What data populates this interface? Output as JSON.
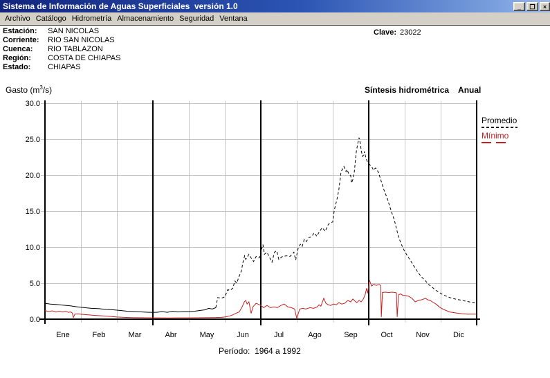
{
  "window": {
    "title": "Sistema de Información de Aguas Superficiales  versión 1.0",
    "controls": {
      "minimize": "_",
      "restore": "❐",
      "close": "×"
    }
  },
  "menu": {
    "items": [
      "Archivo",
      "Catálogo",
      "Hidrometría",
      "Almacenamiento",
      "Seguridad",
      "Ventana"
    ]
  },
  "station": {
    "rows": [
      {
        "label": "Estación:",
        "value": "SAN NICOLAS"
      },
      {
        "label": "Corriente:",
        "value": "RIO SAN NICOLAS"
      },
      {
        "label": "Cuenca:",
        "value": "RIO TABLAZON"
      },
      {
        "label": "Región:",
        "value": "COSTA DE CHIAPAS"
      },
      {
        "label": "Estado:",
        "value": "CHIAPAS"
      }
    ],
    "clave_label": "Clave:",
    "clave_value": "23022"
  },
  "chart_header": {
    "unit_prefix": "Gasto (m",
    "unit_sup": "3",
    "unit_suffix": "/s)",
    "title": "Síntesis hidrométrica",
    "mode": "Anual"
  },
  "legend": {
    "promedio": "Promedio",
    "minimo": "Mínimo",
    "promedio_color": "#000000",
    "minimo_color": "#c42020"
  },
  "footer": {
    "period": "Período:  1964 a 1992"
  },
  "chart_data": {
    "type": "line",
    "title": "Síntesis hidrométrica Anual",
    "ylabel": "Gasto (m3/s)",
    "ylim": [
      0,
      30
    ],
    "ytick_labels": [
      "30.0",
      "25.0",
      "20.0",
      "15.0",
      "10.0",
      "5.0",
      "0.0"
    ],
    "months": [
      "Ene",
      "Feb",
      "Mar",
      "Abr",
      "May",
      "Jun",
      "Jul",
      "Ago",
      "Sep",
      "Oct",
      "Nov",
      "Dic"
    ],
    "x_unit": "months 0-12 (fraction within year)",
    "quarter_lines_after": [
      "Mar",
      "Jun",
      "Sep"
    ],
    "grid": true,
    "legend_position": "right",
    "period": "1964 a 1992",
    "series": [
      {
        "name": "Promedio",
        "color": "#000000",
        "style": "dashed",
        "dash_from_x": 4.75,
        "points": [
          [
            0,
            2.2
          ],
          [
            0.15,
            2.1
          ],
          [
            0.3,
            2.05
          ],
          [
            0.5,
            1.95
          ],
          [
            0.7,
            1.85
          ],
          [
            0.9,
            1.7
          ],
          [
            1.1,
            1.6
          ],
          [
            1.3,
            1.5
          ],
          [
            1.5,
            1.45
          ],
          [
            1.7,
            1.35
          ],
          [
            1.9,
            1.3
          ],
          [
            2.1,
            1.2
          ],
          [
            2.3,
            1.1
          ],
          [
            2.5,
            1.05
          ],
          [
            2.7,
            1.0
          ],
          [
            2.9,
            0.95
          ],
          [
            3.1,
            0.95
          ],
          [
            3.25,
            1.05
          ],
          [
            3.4,
            0.95
          ],
          [
            3.55,
            1.1
          ],
          [
            3.7,
            1.0
          ],
          [
            3.85,
            1.05
          ],
          [
            4.0,
            1.05
          ],
          [
            4.15,
            1.1
          ],
          [
            4.3,
            1.2
          ],
          [
            4.45,
            1.3
          ],
          [
            4.55,
            1.5
          ],
          [
            4.65,
            1.4
          ],
          [
            4.75,
            1.6
          ],
          [
            4.8,
            3.0
          ],
          [
            4.9,
            2.9
          ],
          [
            5.0,
            3.1
          ],
          [
            5.08,
            4.1
          ],
          [
            5.15,
            4.0
          ],
          [
            5.22,
            4.3
          ],
          [
            5.28,
            5.3
          ],
          [
            5.33,
            5.0
          ],
          [
            5.4,
            6.0
          ],
          [
            5.46,
            6.7
          ],
          [
            5.5,
            7.8
          ],
          [
            5.55,
            8.8
          ],
          [
            5.58,
            8.3
          ],
          [
            5.67,
            9.0
          ],
          [
            5.73,
            8.5
          ],
          [
            5.8,
            8.0
          ],
          [
            5.87,
            8.7
          ],
          [
            5.96,
            8.5
          ],
          [
            6.02,
            9.7
          ],
          [
            6.06,
            10.35
          ],
          [
            6.1,
            9.0
          ],
          [
            6.17,
            9.3
          ],
          [
            6.25,
            8.5
          ],
          [
            6.31,
            7.9
          ],
          [
            6.38,
            9.3
          ],
          [
            6.44,
            9.5
          ],
          [
            6.5,
            8.3
          ],
          [
            6.6,
            8.7
          ],
          [
            6.72,
            8.8
          ],
          [
            6.81,
            8.7
          ],
          [
            6.92,
            9.3
          ],
          [
            6.97,
            8.2
          ],
          [
            7.04,
            9.9
          ],
          [
            7.1,
            10.4
          ],
          [
            7.15,
            10.1
          ],
          [
            7.21,
            11.1
          ],
          [
            7.27,
            10.8
          ],
          [
            7.33,
            11.3
          ],
          [
            7.42,
            11.5
          ],
          [
            7.48,
            12.0
          ],
          [
            7.56,
            11.5
          ],
          [
            7.63,
            12.2
          ],
          [
            7.71,
            12.7
          ],
          [
            7.79,
            12.2
          ],
          [
            7.88,
            13.2
          ],
          [
            8.0,
            13.5
          ],
          [
            8.04,
            15.1
          ],
          [
            8.12,
            16.7
          ],
          [
            8.17,
            18.0
          ],
          [
            8.21,
            19.6
          ],
          [
            8.23,
            20.5
          ],
          [
            8.27,
            20.8
          ],
          [
            8.31,
            21.2
          ],
          [
            8.37,
            20.5
          ],
          [
            8.4,
            20.8
          ],
          [
            8.44,
            20.2
          ],
          [
            8.5,
            19.9
          ],
          [
            8.52,
            18.9
          ],
          [
            8.56,
            19.4
          ],
          [
            8.6,
            20.5
          ],
          [
            8.62,
            21.5
          ],
          [
            8.65,
            23.1
          ],
          [
            8.69,
            24.3
          ],
          [
            8.73,
            25.2
          ],
          [
            8.77,
            24.3
          ],
          [
            8.79,
            23.4
          ],
          [
            8.83,
            22.6
          ],
          [
            8.87,
            22.9
          ],
          [
            8.88,
            23.3
          ],
          [
            8.92,
            22.4
          ],
          [
            8.96,
            21.9
          ],
          [
            9.0,
            21.6
          ],
          [
            9.08,
            21.2
          ],
          [
            9.13,
            20.7
          ],
          [
            9.19,
            21.0
          ],
          [
            9.27,
            20.4
          ],
          [
            9.33,
            19.4
          ],
          [
            9.42,
            18.0
          ],
          [
            9.52,
            16.7
          ],
          [
            9.62,
            15.1
          ],
          [
            9.71,
            13.8
          ],
          [
            9.81,
            11.8
          ],
          [
            9.88,
            10.7
          ],
          [
            9.95,
            9.9
          ],
          [
            10.0,
            9.4
          ],
          [
            10.1,
            8.6
          ],
          [
            10.19,
            7.9
          ],
          [
            10.29,
            7.1
          ],
          [
            10.38,
            6.4
          ],
          [
            10.48,
            5.8
          ],
          [
            10.58,
            5.3
          ],
          [
            10.67,
            4.8
          ],
          [
            10.77,
            4.4
          ],
          [
            10.87,
            4.0
          ],
          [
            10.96,
            3.7
          ],
          [
            11.06,
            3.4
          ],
          [
            11.15,
            3.2
          ],
          [
            11.25,
            3.0
          ],
          [
            11.4,
            2.8
          ],
          [
            11.55,
            2.65
          ],
          [
            11.7,
            2.5
          ],
          [
            11.85,
            2.35
          ],
          [
            12.0,
            2.25
          ]
        ]
      },
      {
        "name": "Mínimo",
        "color": "#c42020",
        "style": "solid",
        "points": [
          [
            0,
            1.2
          ],
          [
            0.1,
            1.05
          ],
          [
            0.2,
            1.15
          ],
          [
            0.3,
            1.0
          ],
          [
            0.4,
            1.1
          ],
          [
            0.5,
            1.0
          ],
          [
            0.58,
            1.1
          ],
          [
            0.65,
            0.95
          ],
          [
            0.72,
            1.0
          ],
          [
            0.76,
            0.85
          ],
          [
            0.79,
            0.25
          ],
          [
            0.83,
            0.7
          ],
          [
            0.92,
            0.72
          ],
          [
            1.0,
            0.68
          ],
          [
            1.2,
            0.6
          ],
          [
            1.4,
            0.52
          ],
          [
            1.6,
            0.45
          ],
          [
            1.8,
            0.38
          ],
          [
            2.0,
            0.3
          ],
          [
            2.2,
            0.25
          ],
          [
            2.4,
            0.22
          ],
          [
            2.6,
            0.2
          ],
          [
            3.0,
            0.18
          ],
          [
            3.5,
            0.17
          ],
          [
            4.0,
            0.18
          ],
          [
            4.4,
            0.2
          ],
          [
            4.7,
            0.22
          ],
          [
            4.9,
            0.25
          ],
          [
            5.0,
            0.3
          ],
          [
            5.1,
            0.4
          ],
          [
            5.2,
            0.55
          ],
          [
            5.3,
            0.8
          ],
          [
            5.4,
            1.0
          ],
          [
            5.48,
            1.7
          ],
          [
            5.54,
            2.4
          ],
          [
            5.58,
            2.6
          ],
          [
            5.62,
            2.1
          ],
          [
            5.67,
            2.4
          ],
          [
            5.73,
            0.8
          ],
          [
            5.78,
            1.7
          ],
          [
            5.87,
            2.2
          ],
          [
            5.92,
            2.1
          ],
          [
            6.0,
            1.9
          ],
          [
            6.08,
            1.6
          ],
          [
            6.17,
            1.9
          ],
          [
            6.27,
            1.6
          ],
          [
            6.37,
            1.7
          ],
          [
            6.46,
            1.6
          ],
          [
            6.56,
            1.9
          ],
          [
            6.65,
            2.1
          ],
          [
            6.75,
            1.7
          ],
          [
            6.85,
            1.6
          ],
          [
            6.94,
            1.4
          ],
          [
            7.0,
            0.1
          ],
          [
            7.08,
            1.4
          ],
          [
            7.17,
            1.5
          ],
          [
            7.25,
            1.4
          ],
          [
            7.37,
            1.6
          ],
          [
            7.47,
            1.5
          ],
          [
            7.57,
            1.7
          ],
          [
            7.62,
            2.0
          ],
          [
            7.67,
            1.8
          ],
          [
            7.75,
            2.9
          ],
          [
            7.81,
            2.2
          ],
          [
            7.87,
            2.0
          ],
          [
            7.94,
            1.9
          ],
          [
            8.02,
            2.1
          ],
          [
            8.1,
            2.0
          ],
          [
            8.17,
            2.3
          ],
          [
            8.25,
            2.1
          ],
          [
            8.33,
            2.2
          ],
          [
            8.42,
            2.6
          ],
          [
            8.5,
            2.4
          ],
          [
            8.56,
            2.8
          ],
          [
            8.62,
            2.5
          ],
          [
            8.67,
            2.3
          ],
          [
            8.73,
            2.6
          ],
          [
            8.79,
            2.4
          ],
          [
            8.85,
            2.8
          ],
          [
            8.9,
            3.4
          ],
          [
            8.94,
            4.3
          ],
          [
            8.97,
            3.6
          ],
          [
            9.02,
            5.4
          ],
          [
            9.08,
            4.6
          ],
          [
            9.13,
            4.8
          ],
          [
            9.21,
            4.7
          ],
          [
            9.29,
            4.8
          ],
          [
            9.33,
            4.7
          ],
          [
            9.35,
            0.3
          ],
          [
            9.38,
            3.7
          ],
          [
            9.46,
            3.75
          ],
          [
            9.56,
            3.7
          ],
          [
            9.65,
            3.75
          ],
          [
            9.73,
            3.7
          ],
          [
            9.77,
            3.65
          ],
          [
            9.79,
            0.3
          ],
          [
            9.83,
            3.4
          ],
          [
            9.89,
            3.5
          ],
          [
            9.95,
            3.3
          ],
          [
            10.0,
            3.3
          ],
          [
            10.1,
            3.2
          ],
          [
            10.2,
            2.9
          ],
          [
            10.29,
            2.4
          ],
          [
            10.38,
            2.6
          ],
          [
            10.48,
            2.7
          ],
          [
            10.58,
            2.9
          ],
          [
            10.63,
            2.7
          ],
          [
            10.71,
            2.6
          ],
          [
            10.77,
            2.4
          ],
          [
            10.87,
            2.1
          ],
          [
            10.96,
            1.7
          ],
          [
            11.06,
            1.4
          ],
          [
            11.15,
            1.2
          ],
          [
            11.25,
            1.0
          ],
          [
            11.45,
            0.85
          ],
          [
            11.6,
            0.75
          ],
          [
            11.75,
            0.7
          ],
          [
            12.0,
            0.7
          ]
        ]
      }
    ]
  }
}
